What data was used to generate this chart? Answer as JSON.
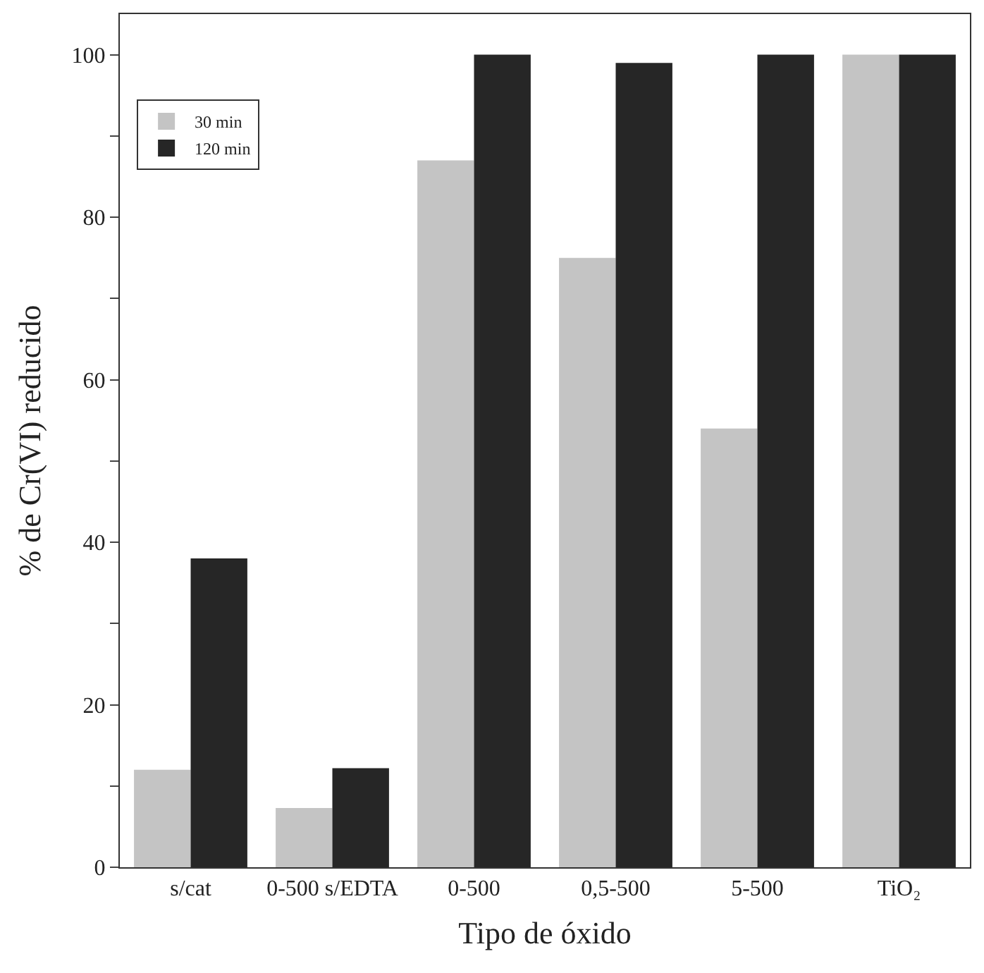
{
  "chart_data": {
    "type": "bar",
    "xlabel": "Tipo de óxido",
    "ylabel": "% de Cr(VI) reducido",
    "categories": [
      "s/cat",
      "0-500 s/EDTA",
      "0-500",
      "0,5-500",
      "5-500",
      "TiO₂"
    ],
    "series": [
      {
        "name": "30 min",
        "color": "#c4c4c4",
        "values": [
          12,
          7.3,
          87,
          75,
          54,
          100
        ]
      },
      {
        "name": "120 min",
        "color": "#262626",
        "values": [
          38,
          12.2,
          100,
          99,
          100,
          100
        ]
      }
    ],
    "ylim": [
      0,
      105
    ],
    "yticks": [
      0,
      {
        "value": 10,
        "label": null
      },
      20,
      {
        "value": 30,
        "label": null
      },
      40,
      {
        "value": 50,
        "label": null
      },
      60,
      {
        "value": 70,
        "label": null
      },
      80,
      {
        "value": 90,
        "label": null
      },
      100
    ],
    "legend": "top left"
  }
}
